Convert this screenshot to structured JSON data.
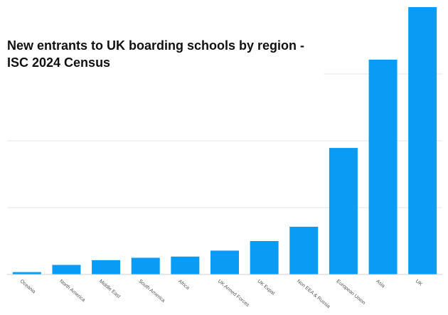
{
  "chart_data": {
    "type": "bar",
    "title": "New entrants to UK boarding schools by region - ISC 2024 Census",
    "xlabel": "",
    "ylabel": "",
    "categories": [
      "Oceania",
      "North America",
      "Middle East",
      "South America",
      "Africa",
      "UK Armed Forces",
      "UK Expat",
      "Non EEA & Russia",
      "European Union",
      "Asia",
      "UK"
    ],
    "values": [
      1,
      4,
      6,
      7,
      7.5,
      10,
      14,
      20,
      53,
      90,
      112
    ],
    "ylim": [
      0,
      112
    ],
    "grid": true,
    "y_tick_labels_shown": false,
    "color": "#0a9cf5"
  }
}
